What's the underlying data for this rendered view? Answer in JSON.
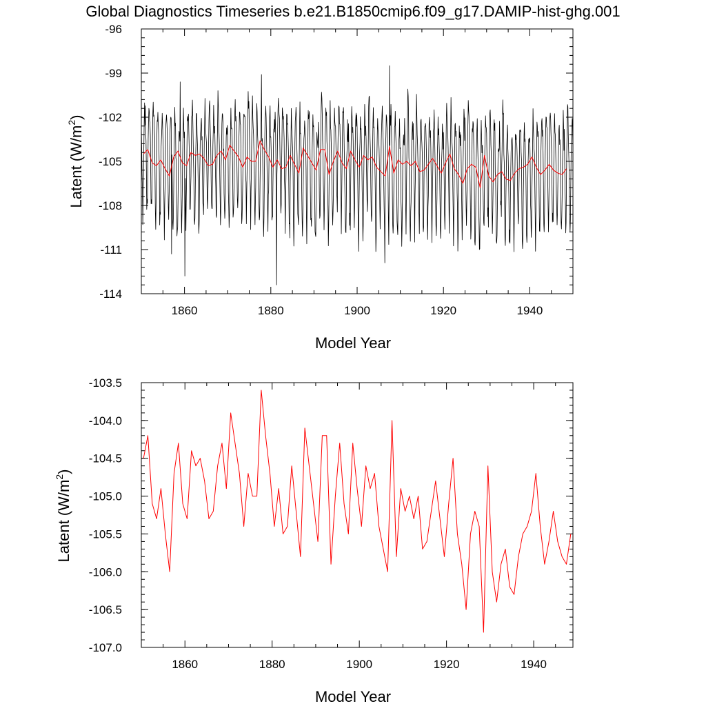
{
  "title": "Global Diagnostics Timeseries b.e21.B1850cmip6.f09_g17.DAMIP-hist-ghg.001",
  "colors": {
    "monthly": "#000000",
    "annual": "#ff0000"
  },
  "chart_data": [
    {
      "type": "line",
      "name": "monthly",
      "xlabel": "Model Year",
      "ylabel_main": "Latent (W/m",
      "ylabel_sup": "2",
      "ylabel_close": ")",
      "xlim": [
        1850,
        1950
      ],
      "ylim": [
        -114,
        -96
      ],
      "xticks": [
        1860,
        1880,
        1900,
        1920,
        1940
      ],
      "xtick_labels": [
        "1860",
        "1880",
        "1900",
        "1920",
        "1940"
      ],
      "yticks": [
        -114,
        -111,
        -108,
        -105,
        -102,
        -99,
        -96
      ],
      "ytick_labels": [
        "-114",
        "-111",
        "-108",
        "-105",
        "-102",
        "-99",
        "-96"
      ],
      "series": [
        {
          "color": "#000000",
          "seasonal_cycle": [
            -103.0,
            -104.0,
            -106.0,
            -108.0,
            -109.0,
            -108.0,
            -106.0,
            -104.0,
            -102.5,
            -101.5,
            -102.0,
            -102.5
          ],
          "extremes": {
            "1860.1": -112.8,
            "1881.3": -113.4,
            "1857.0": -111.3,
            "1907.5": -98.5,
            "1877.8": -99.1,
            "1859.0": -99.6,
            "1906.4": -111.9
          },
          "values": [
            -104.5,
            -104.3,
            -104.2,
            -104.6,
            -104.9,
            -104.8,
            -105.1,
            -105.4,
            -106.0,
            -105.2,
            -104.6,
            -104.4,
            -105.2,
            -105.3,
            -104.6,
            -104.5,
            -104.7,
            -104.5,
            -104.8,
            -105.3,
            -105.2,
            -104.6,
            -104.3,
            -105.0,
            -103.9,
            -104.3,
            -104.7,
            -105.4,
            -104.7,
            -105.0,
            -105.0,
            -103.6,
            -104.2,
            -104.7,
            -105.4,
            -104.9,
            -105.5,
            -105.4,
            -104.6,
            -105.2,
            -105.8,
            -104.1,
            -104.6,
            -105.1,
            -105.6,
            -104.2,
            -104.2,
            -105.9,
            -105.0,
            -104.3,
            -105.1,
            -105.5,
            -104.3,
            -104.9,
            -105.4,
            -104.6,
            -104.9,
            -104.7,
            -105.4,
            -105.7,
            -106.0,
            -104.0,
            -105.8,
            -104.9,
            -105.2,
            -105.0,
            -105.3,
            -105.0,
            -105.7,
            -105.6,
            -105.2,
            -104.8,
            -105.3,
            -105.8,
            -105.1,
            -104.5,
            -105.5,
            -105.9,
            -106.5,
            -105.5,
            -105.2,
            -105.4,
            -106.8,
            -104.6,
            -106.0,
            -106.4,
            -105.9,
            -105.7,
            -106.2,
            -106.3,
            -105.8,
            -105.5,
            -105.4,
            -105.2,
            -104.7,
            -105.4,
            -105.9,
            -105.6,
            -105.2,
            -105.6,
            -105.8,
            -105.9
          ]
        },
        {
          "color": "#ff0000",
          "x0": 1850,
          "values": [
            -104.5,
            -104.2,
            -105.1,
            -105.3,
            -104.9,
            -105.5,
            -106.0,
            -104.7,
            -104.3,
            -105.1,
            -105.3,
            -104.4,
            -104.6,
            -104.5,
            -104.8,
            -105.3,
            -105.2,
            -104.6,
            -104.3,
            -104.9,
            -103.9,
            -104.3,
            -104.7,
            -105.4,
            -104.7,
            -105.0,
            -105.0,
            -103.6,
            -104.2,
            -104.7,
            -105.4,
            -104.9,
            -105.5,
            -105.4,
            -104.6,
            -105.2,
            -105.8,
            -104.1,
            -104.6,
            -105.1,
            -105.6,
            -104.2,
            -104.2,
            -105.9,
            -105.0,
            -104.3,
            -105.1,
            -105.5,
            -104.3,
            -104.9,
            -105.4,
            -104.6,
            -104.9,
            -104.7,
            -105.4,
            -105.7,
            -106.0,
            -104.0,
            -105.8,
            -104.9,
            -105.2,
            -105.0,
            -105.3,
            -105.0,
            -105.7,
            -105.6,
            -105.2,
            -104.8,
            -105.3,
            -105.8,
            -105.1,
            -104.5,
            -105.5,
            -105.9,
            -106.5,
            -105.5,
            -105.2,
            -105.4,
            -106.8,
            -104.6,
            -106.0,
            -106.4,
            -105.9,
            -105.7,
            -106.2,
            -106.3,
            -105.8,
            -105.5,
            -105.4,
            -105.2,
            -104.7,
            -105.4,
            -105.9,
            -105.6,
            -105.2,
            -105.6,
            -105.8,
            -105.9,
            -105.5
          ]
        }
      ]
    },
    {
      "type": "line",
      "name": "annual",
      "xlabel": "Model Year",
      "ylabel_main": "Latent (W/m",
      "ylabel_sup": "2",
      "ylabel_close": ")",
      "xlim": [
        1850,
        1949
      ],
      "ylim": [
        -107.0,
        -103.5
      ],
      "xticks": [
        1860,
        1880,
        1900,
        1920,
        1940
      ],
      "xtick_labels": [
        "1860",
        "1880",
        "1900",
        "1920",
        "1940"
      ],
      "yticks": [
        -107.0,
        -106.5,
        -106.0,
        -105.5,
        -105.0,
        -104.5,
        -104.0,
        -103.5
      ],
      "ytick_labels": [
        "-107.0",
        "-106.5",
        "-106.0",
        "-105.5",
        "-105.0",
        "-104.5",
        "-104.0",
        "-103.5"
      ],
      "series": [
        {
          "color": "#ff0000",
          "x0": 1850,
          "values": [
            -104.5,
            -104.2,
            -105.1,
            -105.3,
            -104.9,
            -105.5,
            -106.0,
            -104.7,
            -104.3,
            -105.1,
            -105.3,
            -104.4,
            -104.6,
            -104.5,
            -104.8,
            -105.3,
            -105.2,
            -104.6,
            -104.3,
            -104.9,
            -103.9,
            -104.3,
            -104.7,
            -105.4,
            -104.7,
            -105.0,
            -105.0,
            -103.6,
            -104.2,
            -104.7,
            -105.4,
            -104.9,
            -105.5,
            -105.4,
            -104.6,
            -105.2,
            -105.8,
            -104.1,
            -104.6,
            -105.1,
            -105.6,
            -104.2,
            -104.2,
            -105.9,
            -105.0,
            -104.3,
            -105.1,
            -105.5,
            -104.3,
            -104.9,
            -105.4,
            -104.6,
            -104.9,
            -104.7,
            -105.4,
            -105.7,
            -106.0,
            -104.0,
            -105.8,
            -104.9,
            -105.2,
            -105.0,
            -105.3,
            -105.0,
            -105.7,
            -105.6,
            -105.2,
            -104.8,
            -105.3,
            -105.8,
            -105.1,
            -104.5,
            -105.5,
            -105.9,
            -106.5,
            -105.5,
            -105.2,
            -105.4,
            -106.8,
            -104.6,
            -106.0,
            -106.4,
            -105.9,
            -105.7,
            -106.2,
            -106.3,
            -105.8,
            -105.5,
            -105.4,
            -105.2,
            -104.7,
            -105.4,
            -105.9,
            -105.6,
            -105.2,
            -105.6,
            -105.8,
            -105.9,
            -105.5
          ]
        }
      ]
    }
  ]
}
